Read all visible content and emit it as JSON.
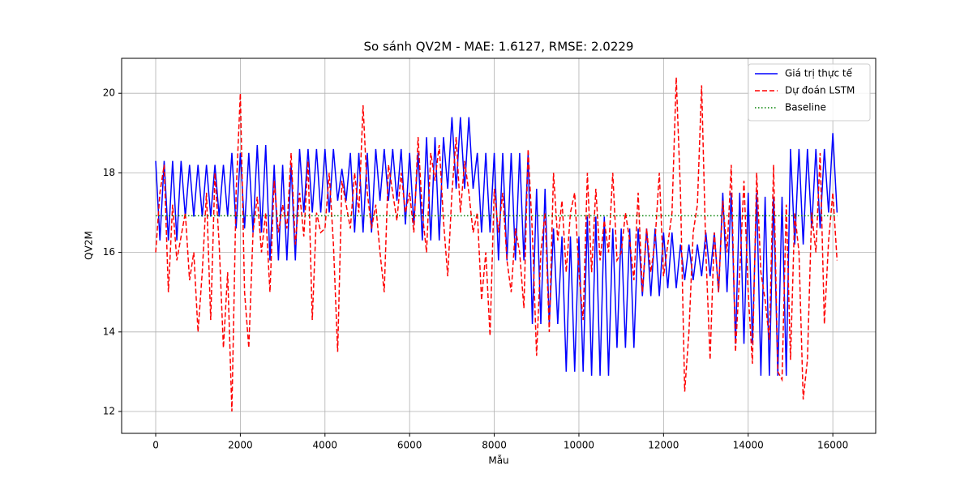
{
  "chart_data": {
    "type": "line",
    "title": "So sánh QV2M - MAE: 1.6127, RMSE: 2.0229",
    "x_label": "Mẫu",
    "y_label": "QV2M",
    "xlim": [
      -805,
      17013
    ],
    "ylim": [
      11.45,
      20.88
    ],
    "xticks": [
      0,
      2000,
      4000,
      6000,
      8000,
      10000,
      12000,
      14000,
      16000
    ],
    "yticks": [
      12,
      14,
      16,
      18,
      20
    ],
    "grid": true,
    "legend": "upper right",
    "x": [
      0,
      100,
      200,
      300,
      400,
      500,
      600,
      700,
      800,
      900,
      1000,
      1100,
      1200,
      1300,
      1400,
      1500,
      1600,
      1700,
      1800,
      1900,
      2000,
      2100,
      2200,
      2300,
      2400,
      2500,
      2600,
      2700,
      2800,
      2900,
      3000,
      3100,
      3200,
      3300,
      3400,
      3500,
      3600,
      3700,
      3800,
      3900,
      4000,
      4100,
      4200,
      4300,
      4400,
      4500,
      4600,
      4700,
      4800,
      4900,
      5000,
      5100,
      5200,
      5300,
      5400,
      5500,
      5600,
      5700,
      5800,
      5900,
      6000,
      6100,
      6200,
      6300,
      6400,
      6500,
      6600,
      6700,
      6800,
      6900,
      7000,
      7100,
      7200,
      7300,
      7400,
      7500,
      7600,
      7700,
      7800,
      7900,
      8000,
      8100,
      8200,
      8300,
      8400,
      8500,
      8600,
      8700,
      8800,
      8900,
      9000,
      9100,
      9200,
      9300,
      9400,
      9500,
      9600,
      9700,
      9800,
      9900,
      10000,
      10100,
      10200,
      10300,
      10400,
      10500,
      10600,
      10700,
      10800,
      10900,
      11000,
      11100,
      11200,
      11300,
      11400,
      11500,
      11600,
      11700,
      11800,
      11900,
      12000,
      12100,
      12200,
      12300,
      12400,
      12500,
      12600,
      12700,
      12800,
      12900,
      13000,
      13100,
      13200,
      13300,
      13400,
      13500,
      13600,
      13700,
      13800,
      13900,
      14000,
      14100,
      14200,
      14300,
      14400,
      14500,
      14600,
      14700,
      14800,
      14900,
      15000,
      15100,
      15200,
      15300,
      15400,
      15500,
      15600,
      15700,
      15800,
      15900,
      16000,
      16100
    ],
    "series": [
      {
        "name": "Giá trị thực tế",
        "color": "#0000ff",
        "linestyle": "solid",
        "values": [
          18.3,
          16.3,
          18.3,
          16.3,
          18.3,
          16.3,
          18.3,
          16.9,
          18.2,
          16.9,
          18.2,
          16.9,
          18.2,
          16.9,
          18.2,
          16.9,
          18.2,
          16.9,
          18.5,
          16.6,
          18.5,
          16.6,
          18.5,
          16.5,
          18.7,
          16.5,
          18.7,
          15.8,
          18.2,
          15.8,
          18.2,
          15.8,
          18.2,
          15.8,
          18.6,
          17.0,
          18.6,
          17.0,
          18.6,
          17.0,
          18.6,
          17.0,
          18.6,
          17.3,
          18.1,
          17.3,
          18.5,
          16.5,
          18.5,
          16.5,
          18.5,
          16.5,
          18.6,
          17.3,
          18.6,
          17.3,
          18.6,
          17.3,
          18.6,
          16.7,
          18.5,
          16.7,
          18.5,
          16.3,
          18.9,
          16.3,
          18.9,
          16.3,
          18.9,
          17.6,
          19.4,
          17.6,
          19.4,
          17.6,
          19.4,
          17.6,
          18.5,
          16.5,
          18.5,
          16.5,
          18.5,
          15.8,
          18.5,
          15.8,
          18.5,
          15.8,
          18.5,
          15.8,
          18.5,
          14.2,
          17.6,
          14.2,
          17.6,
          14.2,
          16.6,
          14.2,
          16.4,
          13.0,
          16.4,
          13.0,
          16.4,
          13.0,
          16.9,
          12.9,
          16.9,
          12.9,
          16.9,
          12.9,
          16.6,
          13.6,
          16.6,
          13.6,
          16.6,
          13.6,
          16.6,
          14.9,
          16.6,
          14.9,
          16.6,
          14.9,
          16.5,
          15.1,
          16.5,
          15.1,
          16.2,
          15.3,
          16.2,
          15.3,
          16.2,
          15.4,
          16.5,
          15.4,
          16.5,
          15.0,
          17.5,
          15.0,
          17.5,
          13.7,
          17.5,
          13.7,
          17.5,
          13.7,
          17.5,
          12.9,
          17.4,
          12.9,
          17.4,
          12.9,
          17.4,
          12.9,
          18.6,
          16.2,
          18.6,
          16.2,
          18.6,
          16.6,
          18.6,
          16.6,
          18.6,
          17.0,
          19.0,
          17.0
        ]
      },
      {
        "name": "Dự đoán LSTM",
        "color": "#ff0000",
        "linestyle": "dashed",
        "values": [
          16.0,
          17.5,
          18.2,
          15.0,
          17.2,
          15.8,
          16.4,
          17.0,
          15.3,
          16.0,
          14.0,
          15.5,
          17.5,
          14.3,
          18.0,
          16.2,
          13.6,
          15.5,
          12.0,
          17.5,
          20.0,
          15.0,
          13.6,
          16.5,
          17.4,
          16.0,
          17.0,
          15.0,
          17.8,
          16.5,
          17.2,
          16.6,
          18.5,
          16.2,
          17.5,
          16.4,
          18.3,
          14.3,
          17.0,
          16.5,
          16.6,
          18.0,
          16.2,
          13.5,
          17.8,
          17.2,
          16.6,
          18.0,
          17.0,
          19.7,
          17.5,
          16.6,
          17.2,
          16.0,
          15.0,
          18.2,
          17.5,
          16.8,
          18.0,
          17.0,
          17.5,
          16.5,
          18.9,
          17.0,
          16.0,
          18.5,
          17.8,
          18.7,
          16.8,
          15.4,
          17.5,
          18.9,
          17.0,
          18.3,
          17.5,
          16.5,
          17.0,
          14.8,
          16.0,
          13.9,
          17.6,
          16.5,
          17.5,
          15.8,
          15.0,
          16.6,
          16.0,
          14.6,
          18.6,
          16.5,
          13.4,
          16.0,
          17.0,
          14.0,
          18.0,
          16.3,
          17.3,
          15.5,
          17.0,
          17.5,
          15.5,
          14.3,
          18.0,
          15.5,
          17.6,
          15.8,
          16.8,
          16.0,
          18.0,
          15.8,
          16.0,
          17.0,
          16.3,
          15.3,
          17.5,
          15.0,
          16.6,
          15.5,
          16.3,
          18.0,
          15.4,
          16.2,
          17.0,
          20.4,
          17.5,
          12.5,
          14.0,
          16.5,
          17.2,
          20.2,
          16.0,
          13.3,
          16.5,
          15.0,
          17.3,
          16.0,
          18.2,
          13.5,
          15.5,
          17.8,
          15.0,
          13.2,
          18.0,
          15.5,
          14.8,
          13.8,
          18.2,
          13.0,
          12.8,
          17.2,
          13.3,
          17.0,
          16.0,
          12.3,
          13.3,
          17.0,
          16.0,
          18.5,
          14.2,
          16.3,
          17.5,
          15.8
        ]
      },
      {
        "name": "Baseline",
        "color": "#008000",
        "linestyle": "dotted",
        "x": [
          0,
          16100
        ],
        "values": [
          16.92,
          16.92
        ]
      }
    ]
  }
}
